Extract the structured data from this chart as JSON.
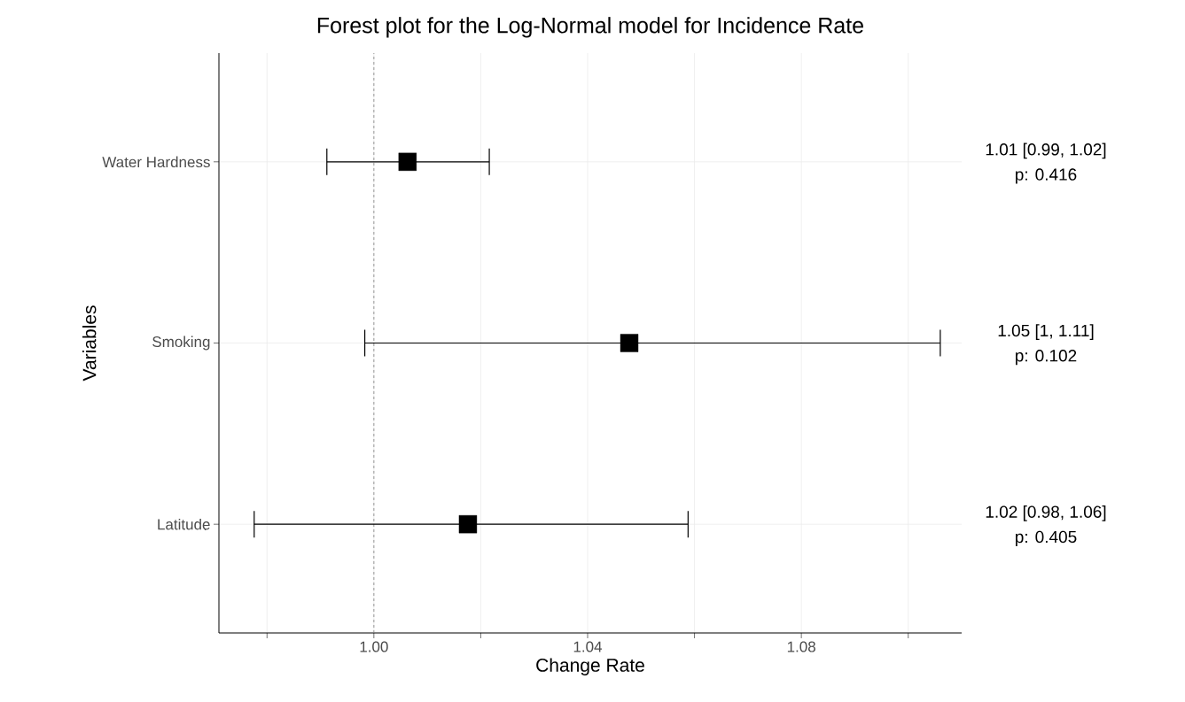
{
  "chart_data": {
    "type": "scatter",
    "orientation": "horizontal",
    "title": "Forest plot for the Log-Normal model for Incidence Rate",
    "xlabel": "Change Rate",
    "ylabel": "Variables",
    "categories": [
      "Water Hardness",
      "Smoking",
      "Latitude"
    ],
    "values": [
      1.0063,
      1.0478,
      1.0176
    ],
    "errors": [
      [
        0.9912,
        1.0216
      ],
      [
        0.9983,
        1.106
      ],
      [
        0.9776,
        1.0588
      ]
    ],
    "annotations": [
      "1.01 [0.99, 1.02]",
      "p: 0.416",
      "1.05 [1, 1.11]",
      "p: 0.102",
      "1.02 [0.98, 1.06]",
      "p: 0.405"
    ],
    "color": "#000000",
    "marker": "square",
    "grid": true,
    "xlim": [
      0.971,
      1.11
    ],
    "xticks": [
      {
        "value": 0.98,
        "label": null
      },
      {
        "value": 1.0,
        "label": "1.00"
      },
      {
        "value": 1.02,
        "label": null
      },
      {
        "value": 1.04,
        "label": "1.04"
      },
      {
        "value": 1.06,
        "label": null
      },
      {
        "value": 1.08,
        "label": "1.08"
      },
      {
        "value": 1.1,
        "label": null
      }
    ],
    "ref_lines": [
      {
        "axis": "x",
        "value": 1.0,
        "color": "#808080",
        "line_style": "dashed"
      }
    ]
  }
}
